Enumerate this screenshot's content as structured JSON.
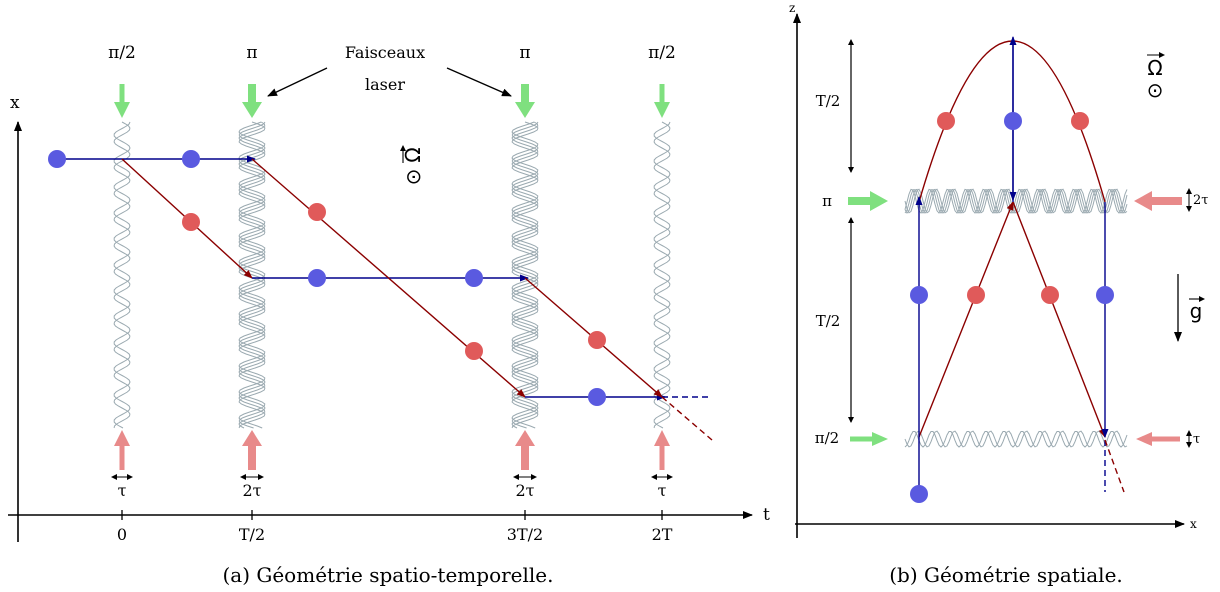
{
  "colors": {
    "blue_path": "#00008b",
    "red_path": "#8b0000",
    "blue_atom": "#5a5ae0",
    "red_atom": "#e05a5a",
    "green_beam": "#7fe07f",
    "red_beam": "#e88a8a",
    "fringe": "#9aa9b0",
    "axis": "#000000"
  },
  "panel_a": {
    "caption": "(a) Géométrie spatio-temporelle.",
    "axis_x_label": "x",
    "axis_t_label": "t",
    "tick_labels": [
      "0",
      "T/2",
      "3T/2",
      "2T"
    ],
    "pulse_labels": [
      "π/2",
      "π",
      "π",
      "π/2"
    ],
    "duration_labels": [
      "τ",
      "2τ",
      "2τ",
      "τ"
    ],
    "laser_annotation_line1": "Faisceaux",
    "laser_annotation_line2": "laser",
    "omega_symbol": "Ω",
    "omega_dot": "⊙"
  },
  "panel_b": {
    "caption": "(b) Géométrie spatiale.",
    "axis_z_label": "z",
    "axis_x_label": "x",
    "pulse_labels": [
      "π",
      "π/2"
    ],
    "duration_labels": [
      "2τ",
      "τ"
    ],
    "interval_labels": [
      "T/2",
      "T/2"
    ],
    "omega_symbol": "Ω",
    "omega_dot": "⊙",
    "gravity_symbol": "g"
  }
}
